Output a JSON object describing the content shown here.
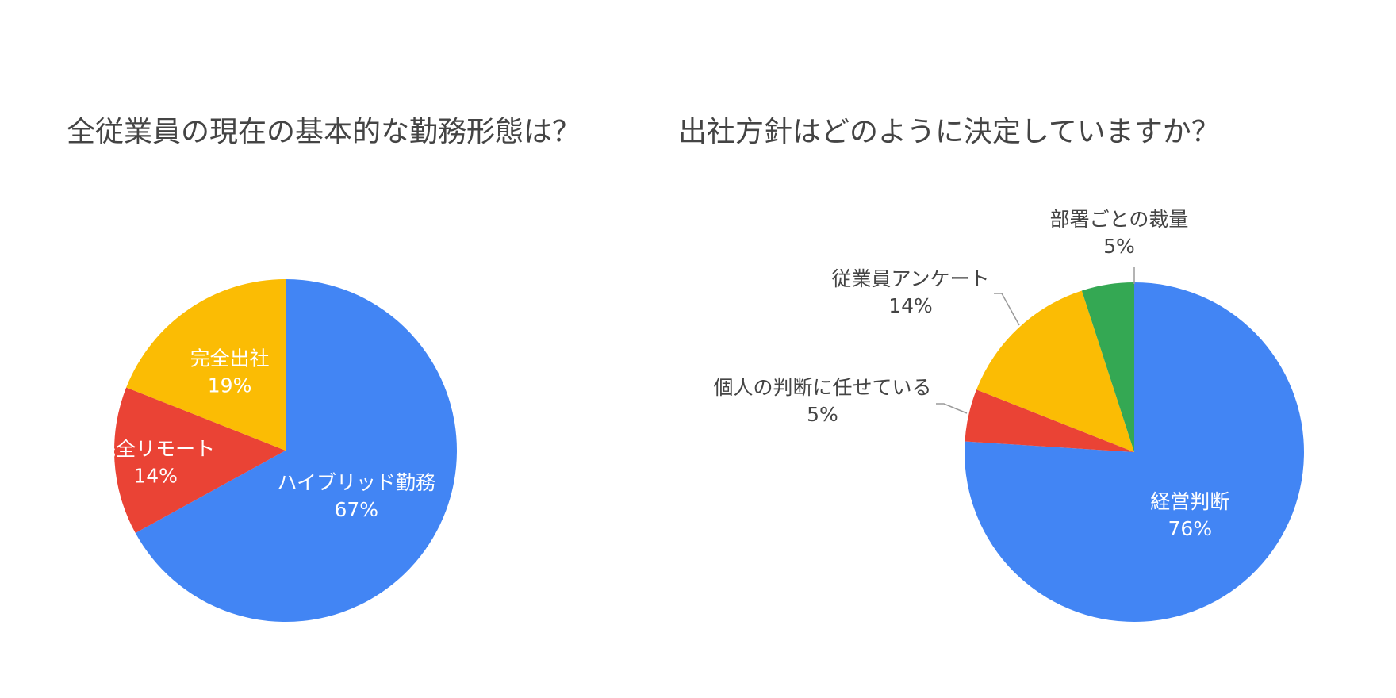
{
  "chart_data": [
    {
      "type": "pie",
      "title": "全従業員の現在の基本的な勤務形態は？",
      "slices": [
        {
          "label": "ハイブリッド勤務",
          "value": 67,
          "value_label": "67%",
          "color": "#4285F4",
          "label_position": "inside"
        },
        {
          "label": "完全リモート",
          "value": 14,
          "value_label": "14%",
          "color": "#EA4335",
          "label_position": "inside"
        },
        {
          "label": "完全出社",
          "value": 19,
          "value_label": "19%",
          "color": "#FBBC04",
          "label_position": "inside"
        }
      ],
      "legend": "none"
    },
    {
      "type": "pie",
      "title": "出社方針はどのように決定していますか？",
      "slices": [
        {
          "label": "経営判断",
          "value": 76,
          "value_label": "76%",
          "color": "#4285F4",
          "label_position": "inside"
        },
        {
          "label": "個人の判断に任せている",
          "value": 5,
          "value_label": "5%",
          "color": "#EA4335",
          "label_position": "outside"
        },
        {
          "label": "従業員アンケート",
          "value": 14,
          "value_label": "14%",
          "color": "#FBBC04",
          "label_position": "outside"
        },
        {
          "label": "部署ごとの裁量",
          "value": 5,
          "value_label": "5%",
          "color": "#34A853",
          "label_position": "outside"
        }
      ],
      "legend": "none"
    }
  ]
}
